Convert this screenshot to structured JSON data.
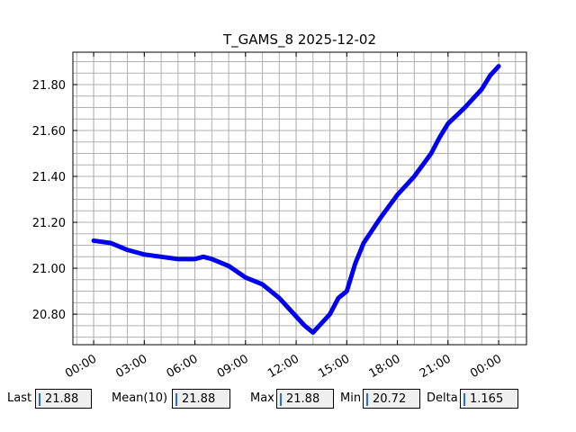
{
  "chart_data": {
    "type": "line",
    "title": "T_GAMS_8 2025-12-02",
    "x": [
      0,
      1,
      2,
      3,
      4,
      5,
      6,
      6.5,
      7,
      8,
      9,
      10,
      11,
      12,
      12.5,
      13,
      14,
      14.5,
      15,
      15.5,
      16,
      17,
      18,
      19,
      20,
      20.5,
      21,
      22,
      23,
      23.5,
      24
    ],
    "series": [
      {
        "name": "T_GAMS_8",
        "color": "#0000ee",
        "values": [
          21.12,
          21.11,
          21.08,
          21.06,
          21.05,
          21.04,
          21.04,
          21.05,
          21.04,
          21.01,
          20.96,
          20.93,
          20.87,
          20.79,
          20.75,
          20.72,
          20.8,
          20.87,
          20.9,
          21.02,
          21.11,
          21.22,
          21.32,
          21.4,
          21.5,
          21.57,
          21.63,
          21.7,
          21.78,
          21.84,
          21.88
        ]
      }
    ],
    "xlim": [
      -1.23,
      25.65
    ],
    "xticks": [
      {
        "value": 0,
        "label": "00:00"
      },
      {
        "value": 3,
        "label": "03:00"
      },
      {
        "value": 6,
        "label": "06:00"
      },
      {
        "value": 9,
        "label": "09:00"
      },
      {
        "value": 12,
        "label": "12:00"
      },
      {
        "value": 15,
        "label": "15:00"
      },
      {
        "value": 18,
        "label": "18:00"
      },
      {
        "value": 21,
        "label": "21:00"
      },
      {
        "value": 24,
        "label": "00:00"
      }
    ],
    "ylim": [
      20.667,
      21.941
    ],
    "yticks": [
      {
        "value": 20.8,
        "label": "20.80"
      },
      {
        "value": 21.0,
        "label": "21.00"
      },
      {
        "value": 21.2,
        "label": "21.20"
      },
      {
        "value": 21.4,
        "label": "21.40"
      },
      {
        "value": 21.6,
        "label": "21.60"
      },
      {
        "value": 21.8,
        "label": "21.80"
      }
    ],
    "grid": true
  },
  "stats": [
    {
      "label": "Last",
      "value": 21.88
    },
    {
      "label": "Mean(10)",
      "value": 21.88
    },
    {
      "label": "Max",
      "value": 21.88
    },
    {
      "label": "Min",
      "value": 20.72
    },
    {
      "label": "Delta",
      "value": 1.165
    }
  ]
}
